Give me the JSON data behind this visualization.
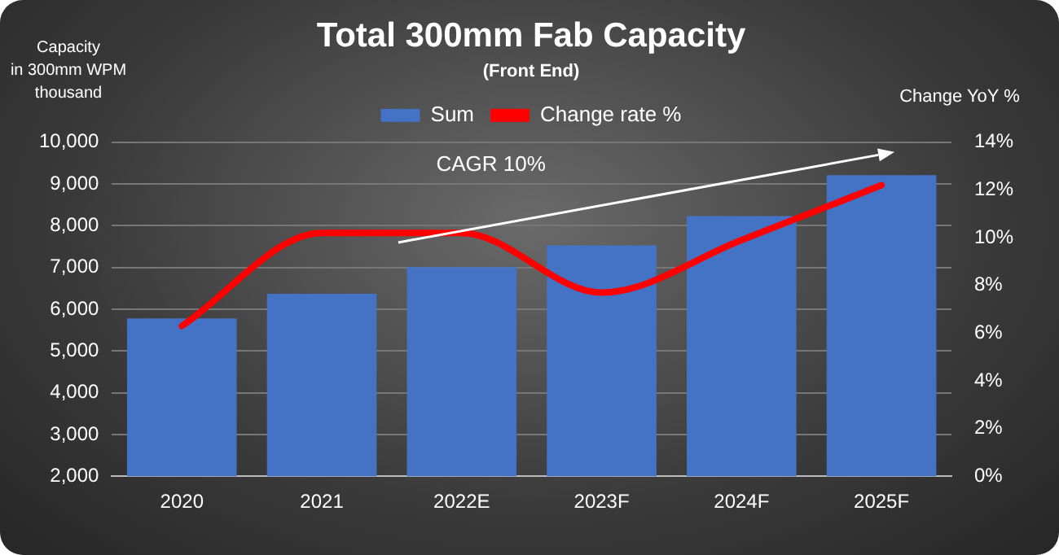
{
  "chart_data": {
    "type": "bar",
    "title": "Total 300mm Fab Capacity",
    "subtitle": "(Front End)",
    "ylabel": "Capacity\nin 300mm WPM\nthousand",
    "y2label": "Change YoY %",
    "categories": [
      "2020",
      "2021",
      "2022E",
      "2023F",
      "2024F",
      "2025F"
    ],
    "series": [
      {
        "name": "Sum",
        "color": "#4472c4",
        "values": [
          5780,
          6370,
          7010,
          7530,
          8230,
          9210
        ]
      },
      {
        "name": "Change rate %",
        "type": "line",
        "axis": "y2",
        "color": "#ff0000",
        "values": [
          6.3,
          10.2,
          10.2,
          7.7,
          9.9,
          12.2
        ]
      }
    ],
    "ylim": [
      2000,
      10000
    ],
    "yticks": [
      {
        "value": 2000,
        "label": "2,000"
      },
      {
        "value": 3000,
        "label": "3,000"
      },
      {
        "value": 4000,
        "label": "4,000"
      },
      {
        "value": 5000,
        "label": "5,000"
      },
      {
        "value": 6000,
        "label": "6,000"
      },
      {
        "value": 7000,
        "label": "7,000"
      },
      {
        "value": 8000,
        "label": "8,000"
      },
      {
        "value": 9000,
        "label": "9,000"
      },
      {
        "value": 10000,
        "label": "10,000"
      }
    ],
    "y2lim": [
      0,
      14
    ],
    "y2ticks": [
      {
        "value": 0,
        "label": "0%"
      },
      {
        "value": 2,
        "label": "2%"
      },
      {
        "value": 4,
        "label": "4%"
      },
      {
        "value": 6,
        "label": "6%"
      },
      {
        "value": 8,
        "label": "8%"
      },
      {
        "value": 10,
        "label": "10%"
      },
      {
        "value": 12,
        "label": "12%"
      },
      {
        "value": 14,
        "label": "14%"
      }
    ],
    "annotations": [
      "CAGR 10%"
    ],
    "grid": "y",
    "legend": "top",
    "marker": "none",
    "line_style": "solid"
  }
}
